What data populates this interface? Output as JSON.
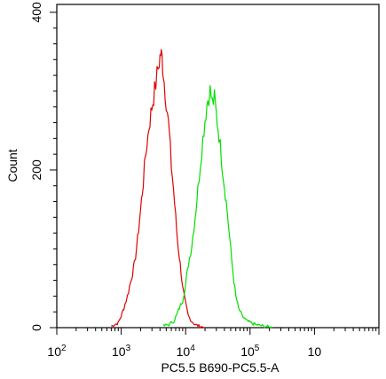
{
  "chart_data": {
    "type": "line",
    "title": "",
    "xlabel": "PC5.5 B690-PC5.5-A",
    "ylabel": "Count",
    "x_scale": "log",
    "xlim": [
      100,
      10000000
    ],
    "ylim": [
      0,
      410
    ],
    "grid": false,
    "legend": "none",
    "x_ticks": [
      {
        "value": 100,
        "base": "10",
        "exp": "2"
      },
      {
        "value": 1000,
        "base": "10",
        "exp": "3"
      },
      {
        "value": 10000,
        "base": "10",
        "exp": "4"
      },
      {
        "value": 100000,
        "base": "10",
        "exp": "5"
      },
      {
        "value": 1000000,
        "base": "10",
        "exp": ""
      }
    ],
    "y_ticks": [
      {
        "value": 0,
        "label": "0"
      },
      {
        "value": 200,
        "label": "200"
      },
      {
        "value": 400,
        "label": "400"
      }
    ],
    "series": [
      {
        "color": "#e00000",
        "x": [
          700,
          900,
          1000,
          1100,
          1250,
          1400,
          1600,
          1800,
          2000,
          2200,
          2400,
          2700,
          3000,
          3300,
          3600,
          3900,
          4100,
          4300,
          4500,
          4800,
          5200,
          5600,
          6000,
          6500,
          7000,
          7500,
          8000,
          8500,
          9000,
          10000,
          11000,
          12500,
          14000,
          16000,
          20000
        ],
        "y": [
          2,
          6,
          15,
          25,
          40,
          58,
          80,
          112,
          150,
          185,
          220,
          255,
          280,
          300,
          320,
          338,
          348,
          342,
          325,
          300,
          275,
          245,
          205,
          175,
          140,
          110,
          90,
          70,
          50,
          30,
          15,
          8,
          4,
          2,
          0
        ]
      },
      {
        "color": "#00e000",
        "x": [
          4500,
          5500,
          6500,
          7200,
          8000,
          9000,
          10000,
          11000,
          12500,
          14000,
          15500,
          17000,
          18500,
          20000,
          22000,
          24000,
          26000,
          28000,
          30000,
          33000,
          36000,
          40000,
          44000,
          48000,
          52000,
          56000,
          60000,
          66000,
          75000,
          90000,
          120000,
          160000,
          220000
        ],
        "y": [
          2,
          4,
          8,
          15,
          25,
          35,
          55,
          80,
          105,
          140,
          175,
          210,
          240,
          265,
          290,
          300,
          285,
          290,
          270,
          245,
          215,
          180,
          150,
          115,
          85,
          60,
          40,
          25,
          15,
          8,
          4,
          2,
          0
        ]
      }
    ]
  }
}
